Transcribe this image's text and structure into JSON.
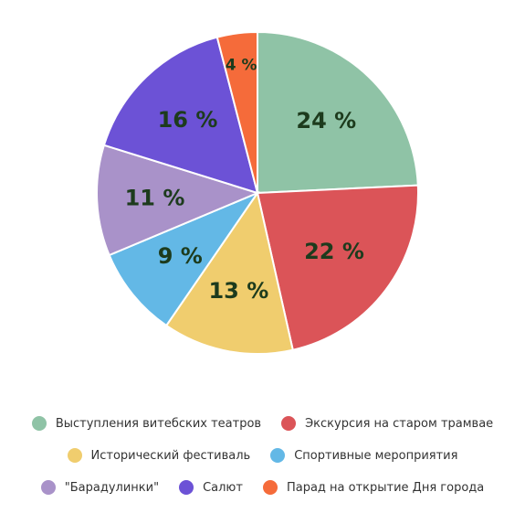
{
  "chart_data": {
    "type": "pie",
    "title": "",
    "legend_position": "bottom",
    "slices": [
      {
        "label": "Выступления витебских театров",
        "value": 24,
        "display": "24 %",
        "color": "#8fc3a6"
      },
      {
        "label": "Экскурсия на старом трамвае",
        "value": 22,
        "display": "22 %",
        "color": "#db5458"
      },
      {
        "label": "Исторический фестиваль",
        "value": 13,
        "display": "13 %",
        "color": "#f0cd6e"
      },
      {
        "label": "Спортивные мероприятия",
        "value": 9,
        "display": "9 %",
        "color": "#63b8e6"
      },
      {
        "label": "\"Барадулинки\"",
        "value": 11,
        "display": "11 %",
        "color": "#a992c9"
      },
      {
        "label": "Салют",
        "value": 16,
        "display": "16 %",
        "color": "#6c52d6"
      },
      {
        "label": "Парад на открытие Дня города",
        "value": 4,
        "display": "4 %",
        "color": "#f56b3a"
      }
    ]
  },
  "legend": {
    "rows": [
      [
        0,
        1
      ],
      [
        2,
        3
      ],
      [
        4,
        5,
        6
      ]
    ]
  }
}
